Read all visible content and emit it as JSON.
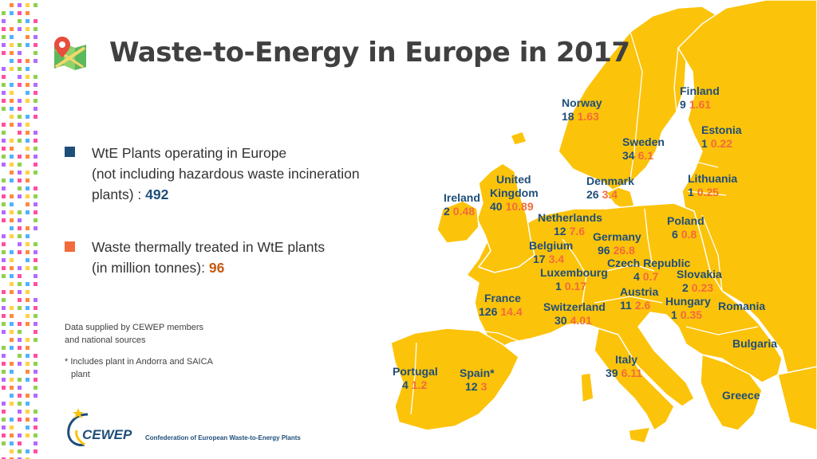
{
  "title": "Waste-to-Energy in Europe in 2017",
  "legend": {
    "plants_label": "WtE Plants operating in Europe",
    "plants_label_line2": "(not including hazardous waste incineration",
    "plants_label_line3": "plants) : ",
    "plants_total": "492",
    "tonnes_label": "Waste thermally treated in WtE plants",
    "tonnes_label_line2": "(in million tonnes): ",
    "tonnes_total": "96",
    "plants_color": "#1f4e79",
    "tonnes_color": "#f26b3a"
  },
  "notes": {
    "source_line1": "Data supplied by CEWEP members",
    "source_line2": "and national sources",
    "footnote_line1": "* Includes plant in Andorra and SAICA",
    "footnote_line2": "plant"
  },
  "logo": {
    "name": "CEWEP",
    "subtitle": "Confederation of European Waste-to-Energy Plants"
  },
  "map_colors": {
    "land": "#fcc30b",
    "land_border": "#ffffff",
    "background": "#ffffff"
  },
  "countries": [
    {
      "id": "norway",
      "name": "Norway",
      "plants": "18",
      "tonnes": "1.63"
    },
    {
      "id": "finland",
      "name": "Finland",
      "plants": "9",
      "tonnes": "1.61"
    },
    {
      "id": "estonia",
      "name": "Estonia",
      "plants": "1",
      "tonnes": "0.22"
    },
    {
      "id": "sweden",
      "name": "Sweden",
      "plants": "34",
      "tonnes": "6.1"
    },
    {
      "id": "denmark",
      "name": "Denmark",
      "plants": "26",
      "tonnes": "3.4"
    },
    {
      "id": "lithuania",
      "name": "Lithuania",
      "plants": "1",
      "tonnes": "0.25"
    },
    {
      "id": "united-kingdom",
      "name": "United",
      "name2": "Kingdom",
      "plants": "40",
      "tonnes": "10.89"
    },
    {
      "id": "ireland",
      "name": "Ireland",
      "plants": "2",
      "tonnes": "0.48"
    },
    {
      "id": "netherlands",
      "name": "Netherlands",
      "plants": "12",
      "tonnes": "7.6"
    },
    {
      "id": "poland",
      "name": "Poland",
      "plants": "6",
      "tonnes": "0.8"
    },
    {
      "id": "germany",
      "name": "Germany",
      "plants": "96",
      "tonnes": "26.8"
    },
    {
      "id": "belgium",
      "name": "Belgium",
      "plants": "17",
      "tonnes": "3.4"
    },
    {
      "id": "czech-republic",
      "name": "Czech Republic",
      "plants": "4",
      "tonnes": "0.7"
    },
    {
      "id": "slovakia",
      "name": "Slovakia",
      "plants": "2",
      "tonnes": "0.23"
    },
    {
      "id": "luxembourg",
      "name": "Luxembourg",
      "plants": "1",
      "tonnes": "0.17"
    },
    {
      "id": "austria",
      "name": "Austria",
      "plants": "11",
      "tonnes": "2.6"
    },
    {
      "id": "hungary",
      "name": "Hungary",
      "plants": "1",
      "tonnes": "0.35"
    },
    {
      "id": "romania",
      "name": "Romania",
      "plants": "",
      "tonnes": ""
    },
    {
      "id": "france",
      "name": "France",
      "plants": "126",
      "tonnes": "14.4"
    },
    {
      "id": "switzerland",
      "name": "Switzerland",
      "plants": "30",
      "tonnes": "4.01"
    },
    {
      "id": "bulgaria",
      "name": "Bulgaria",
      "plants": "",
      "tonnes": ""
    },
    {
      "id": "italy",
      "name": "Italy",
      "plants": "39",
      "tonnes": "6.11"
    },
    {
      "id": "portugal",
      "name": "Portugal",
      "plants": "4",
      "tonnes": "1.2"
    },
    {
      "id": "spain",
      "name": "Spain*",
      "plants": "12",
      "tonnes": "3"
    },
    {
      "id": "greece",
      "name": "Greece",
      "plants": "",
      "tonnes": ""
    }
  ]
}
